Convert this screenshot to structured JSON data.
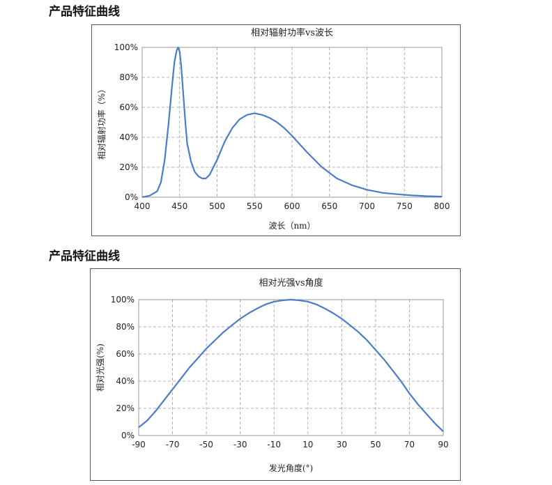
{
  "sections": [
    {
      "title": "产品特征曲线"
    },
    {
      "title": "产品特征曲线"
    }
  ],
  "chart_data": [
    {
      "type": "line",
      "title": "相对辐射功率vs波长",
      "xlabel": "波长（nm）",
      "ylabel": "相对辐射功率（%）",
      "xlim": [
        400,
        800
      ],
      "ylim": [
        0,
        100
      ],
      "xticks": [
        400,
        450,
        500,
        550,
        600,
        650,
        700,
        750,
        800
      ],
      "yticks": [
        0,
        20,
        40,
        60,
        80,
        100
      ],
      "ytick_suffix": "%",
      "grid": true,
      "color": "#4a7cc7",
      "x": [
        400,
        410,
        420,
        425,
        430,
        435,
        440,
        443,
        446,
        448,
        450,
        452,
        455,
        458,
        460,
        465,
        470,
        475,
        480,
        485,
        490,
        495,
        500,
        505,
        510,
        520,
        530,
        540,
        550,
        560,
        570,
        580,
        590,
        600,
        620,
        640,
        660,
        680,
        700,
        720,
        740,
        760,
        780,
        800
      ],
      "y": [
        0,
        1,
        4,
        10,
        25,
        48,
        75,
        90,
        98,
        100,
        97,
        88,
        68,
        48,
        36,
        24,
        17,
        14,
        12.5,
        12.5,
        15,
        20,
        25,
        31,
        37,
        46,
        52,
        55,
        56,
        55,
        53,
        50,
        46,
        41,
        30,
        20,
        12.5,
        8,
        5,
        3,
        2,
        1.2,
        0.7,
        0.4
      ]
    },
    {
      "type": "line",
      "title": "相对光强vs角度",
      "xlabel": "发光角度(°)",
      "ylabel": "相对光强(%)",
      "xlim": [
        -90,
        90
      ],
      "ylim": [
        0,
        100
      ],
      "xticks": [
        -90,
        -70,
        -50,
        -30,
        -10,
        10,
        30,
        50,
        70,
        90
      ],
      "yticks": [
        0,
        20,
        40,
        60,
        80,
        100
      ],
      "ytick_suffix": "%",
      "grid": true,
      "color": "#4a7cc7",
      "x": [
        -90,
        -85,
        -80,
        -75,
        -70,
        -65,
        -60,
        -55,
        -50,
        -45,
        -40,
        -35,
        -30,
        -25,
        -20,
        -15,
        -10,
        -5,
        0,
        5,
        10,
        15,
        20,
        25,
        30,
        35,
        40,
        45,
        50,
        55,
        60,
        65,
        70,
        75,
        80,
        85,
        90
      ],
      "y": [
        6,
        11,
        18,
        26,
        34,
        42,
        50,
        57,
        64,
        70,
        76,
        81,
        86,
        90,
        93.5,
        96.5,
        98.5,
        99.5,
        100,
        99.5,
        98.5,
        96.5,
        93.5,
        90,
        86,
        81,
        76,
        70,
        63,
        56,
        48,
        40,
        31,
        23,
        16,
        9,
        3
      ]
    }
  ]
}
